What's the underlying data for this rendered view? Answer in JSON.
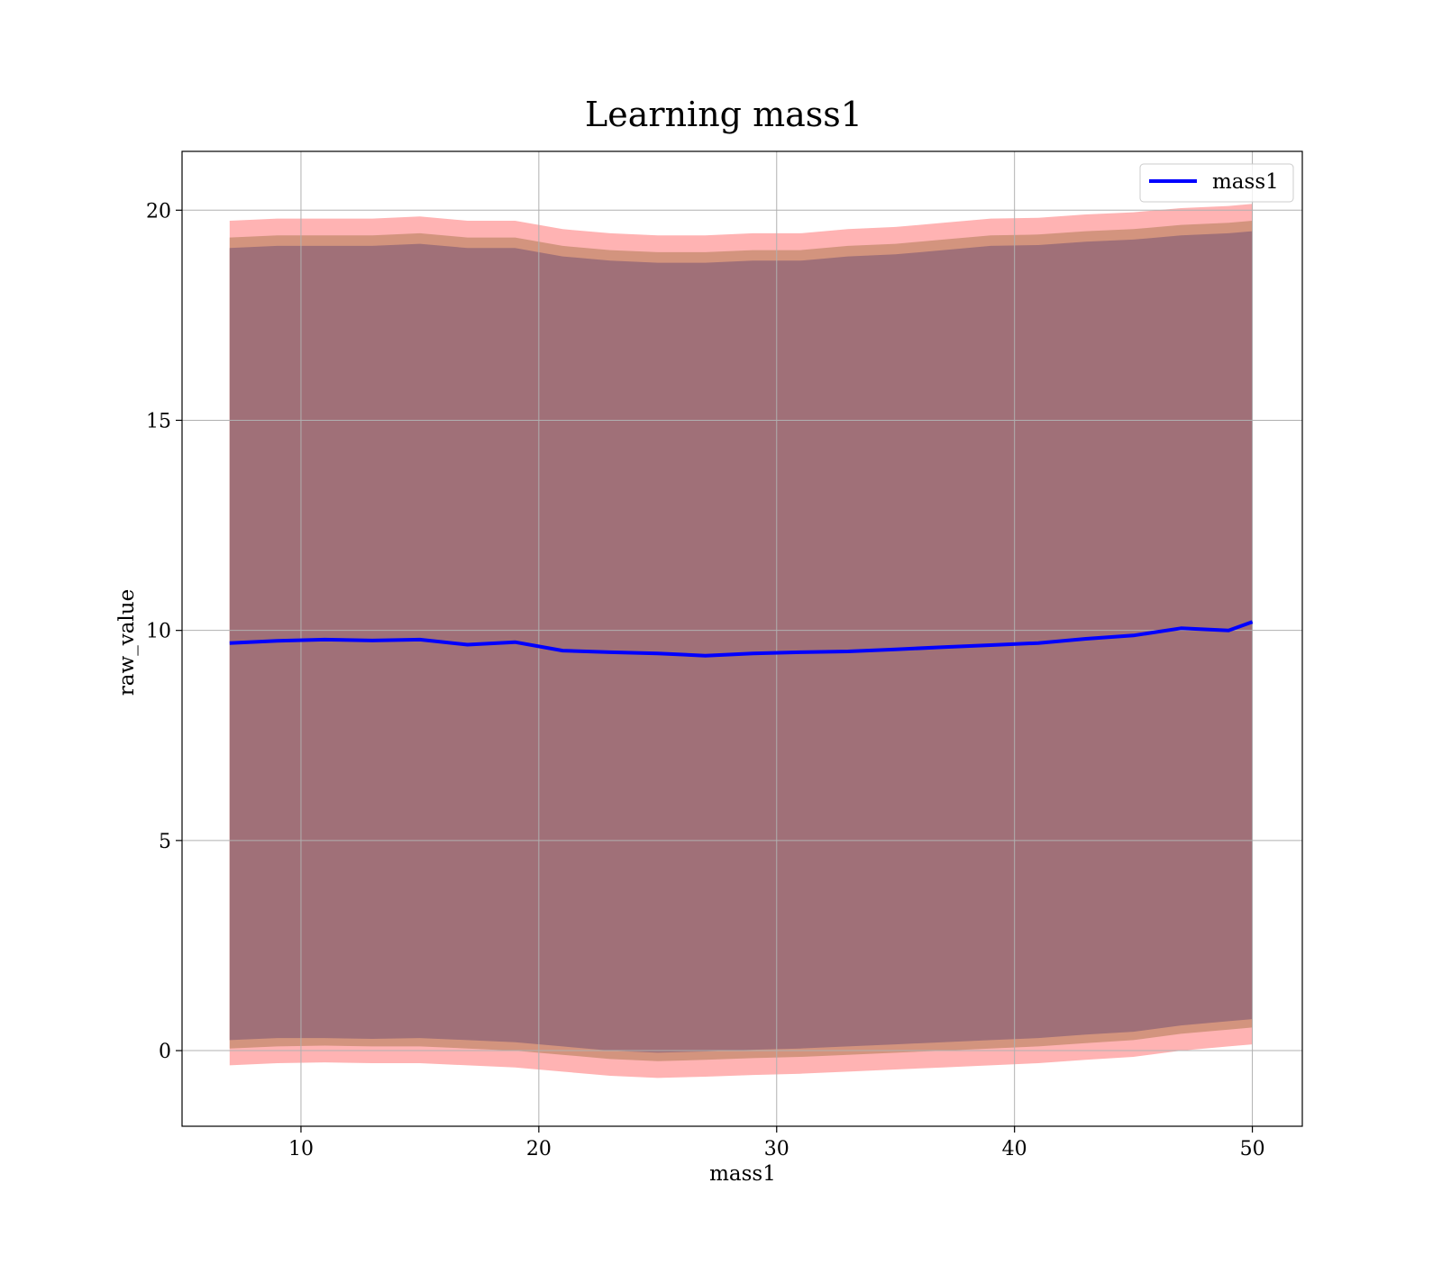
{
  "chart_data": {
    "type": "area",
    "title": "Learning mass1",
    "xlabel": "mass1",
    "ylabel": "raw_value",
    "xlim": [
      5,
      52.1
    ],
    "ylim": [
      -1.8,
      21.4
    ],
    "xticks": [
      10,
      20,
      30,
      40,
      50
    ],
    "yticks": [
      0,
      5,
      10,
      15,
      20
    ],
    "grid": true,
    "legend": {
      "position": "top-right",
      "entries": [
        "mass1"
      ]
    },
    "colors": {
      "line": "#0000ff",
      "outer_band": "#ff8080",
      "middle_band": "#c48a6c",
      "inner_band": "#a07078",
      "grid": "#b0b0b0"
    },
    "x": [
      7,
      9,
      11,
      13,
      15,
      17,
      19,
      21,
      23,
      25,
      27,
      29,
      31,
      33,
      35,
      37,
      39,
      41,
      43,
      45,
      47,
      49,
      50
    ],
    "series": [
      {
        "name": "mass1",
        "values": [
          9.7,
          9.75,
          9.78,
          9.76,
          9.78,
          9.66,
          9.72,
          9.52,
          9.48,
          9.45,
          9.4,
          9.45,
          9.48,
          9.5,
          9.55,
          9.6,
          9.65,
          9.7,
          9.8,
          9.88,
          10.05,
          10.0,
          10.2
        ]
      }
    ],
    "bands": [
      {
        "level": "outer",
        "lower": [
          -0.35,
          -0.3,
          -0.28,
          -0.3,
          -0.3,
          -0.35,
          -0.4,
          -0.5,
          -0.6,
          -0.65,
          -0.62,
          -0.58,
          -0.55,
          -0.5,
          -0.45,
          -0.4,
          -0.35,
          -0.3,
          -0.22,
          -0.15,
          0.0,
          0.1,
          0.15
        ],
        "upper": [
          19.75,
          19.8,
          19.8,
          19.8,
          19.85,
          19.75,
          19.75,
          19.55,
          19.45,
          19.4,
          19.4,
          19.45,
          19.45,
          19.55,
          19.6,
          19.7,
          19.8,
          19.82,
          19.9,
          19.95,
          20.05,
          20.1,
          20.15
        ]
      },
      {
        "level": "middle",
        "lower": [
          0.05,
          0.1,
          0.12,
          0.1,
          0.1,
          0.05,
          0.0,
          -0.1,
          -0.2,
          -0.25,
          -0.22,
          -0.18,
          -0.15,
          -0.1,
          -0.05,
          0.0,
          0.05,
          0.1,
          0.18,
          0.25,
          0.4,
          0.5,
          0.55
        ],
        "upper": [
          19.35,
          19.4,
          19.4,
          19.4,
          19.45,
          19.35,
          19.35,
          19.15,
          19.05,
          19.0,
          19.0,
          19.05,
          19.05,
          19.15,
          19.2,
          19.3,
          19.4,
          19.42,
          19.5,
          19.55,
          19.65,
          19.7,
          19.75
        ]
      },
      {
        "level": "inner",
        "lower": [
          0.25,
          0.3,
          0.3,
          0.28,
          0.3,
          0.25,
          0.2,
          0.1,
          0.0,
          -0.05,
          -0.02,
          0.02,
          0.05,
          0.1,
          0.15,
          0.2,
          0.25,
          0.3,
          0.38,
          0.45,
          0.6,
          0.7,
          0.75
        ],
        "upper": [
          19.1,
          19.15,
          19.15,
          19.15,
          19.2,
          19.1,
          19.1,
          18.9,
          18.8,
          18.75,
          18.75,
          18.8,
          18.8,
          18.9,
          18.95,
          19.05,
          19.15,
          19.17,
          19.25,
          19.3,
          19.4,
          19.45,
          19.5
        ]
      }
    ]
  }
}
